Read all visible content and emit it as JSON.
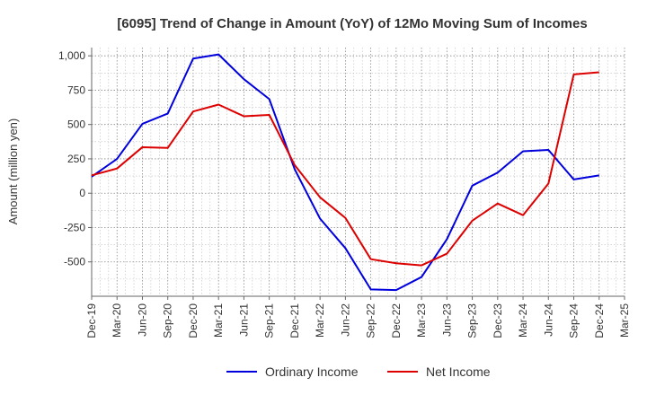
{
  "chart_data": {
    "type": "line",
    "title": "[6095]  Trend of Change in Amount (YoY) of 12Mo Moving Sum of Incomes",
    "xlabel": "",
    "ylabel": "Amount (million yen)",
    "ylim": [
      -750,
      1060
    ],
    "yticks": [
      -500,
      -250,
      0,
      250,
      500,
      750,
      1000
    ],
    "ytick_labels": [
      "-500",
      "-250",
      "0",
      "250",
      "500",
      "750",
      "1,000"
    ],
    "grid": true,
    "legend_position": "bottom-center",
    "categories": [
      "Dec-19",
      "Mar-20",
      "Jun-20",
      "Sep-20",
      "Dec-20",
      "Mar-21",
      "Jun-21",
      "Sep-21",
      "Dec-21",
      "Mar-22",
      "Jun-22",
      "Sep-22",
      "Dec-22",
      "Mar-23",
      "Jun-23",
      "Sep-23",
      "Dec-23",
      "Mar-24",
      "Jun-24",
      "Sep-24",
      "Dec-24",
      "Mar-25"
    ],
    "series": [
      {
        "name": "Ordinary Income",
        "color": "#0000dd",
        "values": [
          120,
          250,
          505,
          580,
          980,
          1010,
          830,
          685,
          175,
          -185,
          -400,
          -700,
          -705,
          -610,
          -335,
          55,
          150,
          305,
          315,
          100,
          130,
          null
        ]
      },
      {
        "name": "Net Income",
        "color": "#dd0000",
        "values": [
          130,
          180,
          335,
          330,
          595,
          645,
          560,
          570,
          205,
          -30,
          -180,
          -480,
          -510,
          -525,
          -440,
          -200,
          -75,
          -160,
          70,
          865,
          880,
          null
        ]
      }
    ]
  }
}
